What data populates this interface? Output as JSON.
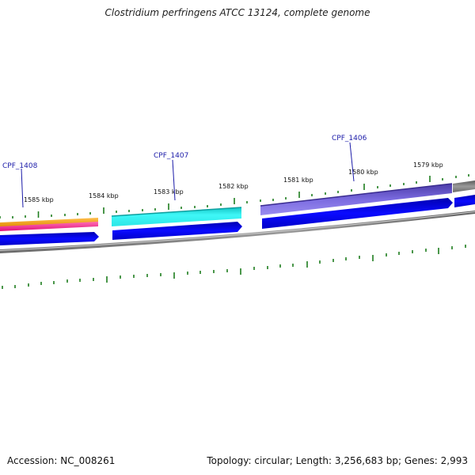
{
  "title": "Clostridium perfringens ATCC 13124, complete genome",
  "footer": {
    "accession": "Accession: NC_008261",
    "topology": "Topology: circular; Length: 3,256,683 bp; Genes: 2,993"
  },
  "ticks": [
    "1585 kbp",
    "1584 kbp",
    "1583 kbp",
    "1582 kbp",
    "1581 kbp",
    "1580 kbp",
    "1579 kbp"
  ],
  "genes": [
    "CPF_1408",
    "CPF_1407",
    "CPF_1406"
  ],
  "colors": {
    "tick_green": "#1e7d1e",
    "backbone_gray": "#808080",
    "cds_blue": "#0000e6",
    "orange": "#f39c12",
    "magenta": "#ff1e8c",
    "cyan": "#20f2f2",
    "purple": "#6a5acd",
    "label_blue": "#1a1aa8"
  }
}
